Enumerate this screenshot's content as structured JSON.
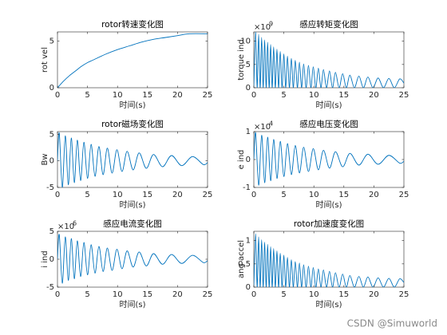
{
  "chart_data": [
    {
      "type": "line",
      "title": "rotor转速变化图",
      "xlabel": "时间(s)",
      "ylabel": "rot vel",
      "color": "#0072bd",
      "x": [
        0,
        1,
        2,
        3,
        4,
        5,
        6,
        8,
        10,
        12,
        14,
        16,
        18,
        20,
        22,
        25
      ],
      "values": [
        0,
        0.7,
        1.3,
        1.8,
        2.3,
        2.7,
        3.0,
        3.6,
        4.1,
        4.5,
        4.9,
        5.2,
        5.4,
        5.6,
        5.8,
        5.8
      ],
      "xlim": [
        0,
        25
      ],
      "xticks": [
        0,
        5,
        10,
        15,
        20,
        25
      ],
      "ylim": [
        0,
        6
      ],
      "yticks": [
        0,
        5
      ]
    },
    {
      "type": "line",
      "title": "感应转矩变化图",
      "xlabel": "时间(s)",
      "ylabel": "torque ind",
      "color": "#0072bd",
      "y_exponent": {
        "base": "×10",
        "power": "9"
      },
      "x": [
        0,
        0.3,
        0.55,
        0.8,
        1.05,
        1.3,
        1.55,
        1.8,
        2.05,
        2.3,
        2.55,
        2.8,
        3.05,
        3.3,
        3.57,
        3.85,
        4.12,
        4.4,
        4.7,
        5.0,
        5.3,
        5.6,
        5.92,
        6.25,
        6.57,
        6.9,
        7.25,
        7.6,
        7.95,
        8.3,
        8.7,
        9.1,
        9.5,
        9.9,
        10.32,
        10.75,
        11.17,
        11.6,
        12.1,
        12.6,
        13.1,
        13.6,
        14.2,
        14.8,
        15.4,
        16,
        16.75,
        17.5,
        18.25,
        19,
        19.85,
        20.7,
        21.6,
        22.5,
        23.4,
        24.3,
        25
      ],
      "values": [
        0,
        12.2,
        0,
        11.5,
        0,
        10.8,
        0,
        10.3,
        0,
        9.8,
        0,
        9.3,
        0,
        8.8,
        0,
        8.3,
        0,
        7.8,
        0,
        7.3,
        0,
        6.8,
        0,
        6.3,
        0,
        5.9,
        0,
        5.5,
        0,
        5.1,
        0,
        4.8,
        0,
        4.5,
        0,
        4.2,
        0,
        3.9,
        0,
        3.6,
        0,
        3.3,
        0,
        3.0,
        0,
        2.7,
        0,
        2.5,
        0,
        2.3,
        0,
        2.1,
        0,
        2.0,
        0,
        1.9,
        1.0
      ],
      "xlim": [
        0,
        25
      ],
      "xticks": [
        0,
        5,
        10,
        15,
        20,
        25
      ],
      "ylim": [
        0,
        12
      ],
      "yticks": [
        0,
        5,
        10
      ]
    },
    {
      "type": "line",
      "title": "rotor磁场变化图",
      "xlabel": "时间(s)",
      "ylabel": "Bw",
      "color": "#0072bd",
      "x": [
        0,
        0.3,
        0.8,
        1.3,
        1.8,
        2.3,
        2.8,
        3.3,
        3.85,
        4.4,
        5.0,
        5.6,
        6.25,
        6.9,
        7.6,
        8.3,
        9.1,
        9.9,
        10.75,
        11.6,
        12.6,
        13.6,
        14.8,
        16,
        17.5,
        19,
        20.7,
        22.5,
        24.3,
        25
      ],
      "values": [
        0,
        5.2,
        -5,
        4.7,
        -4.5,
        4.3,
        -4.1,
        3.9,
        -3.7,
        3.5,
        -3.3,
        3.1,
        -2.9,
        2.7,
        -2.6,
        2.4,
        -2.3,
        2.1,
        -2.0,
        1.8,
        -1.7,
        1.5,
        -1.4,
        1.2,
        -1.1,
        1.0,
        -0.9,
        0.8,
        -0.7,
        -0.3
      ],
      "xlim": [
        0,
        25
      ],
      "xticks": [
        0,
        5,
        10,
        15,
        20,
        25
      ],
      "ylim": [
        -5,
        5.5
      ],
      "yticks": [
        -5,
        0,
        5
      ]
    },
    {
      "type": "line",
      "title": "感应电压变化图",
      "xlabel": "时间(s)",
      "ylabel": "e ind",
      "color": "#0072bd",
      "y_exponent": {
        "base": "×10",
        "power": "4"
      },
      "x": [
        0,
        0.3,
        0.8,
        1.3,
        1.8,
        2.3,
        2.8,
        3.3,
        3.85,
        4.4,
        5.0,
        5.6,
        6.25,
        6.9,
        7.6,
        8.3,
        9.1,
        9.9,
        10.75,
        11.6,
        12.6,
        13.6,
        14.8,
        16,
        17.5,
        19,
        20.7,
        22.5,
        24.3,
        25
      ],
      "values": [
        0,
        0.95,
        -0.92,
        0.87,
        -0.83,
        0.8,
        -0.76,
        0.72,
        -0.68,
        0.65,
        -0.61,
        0.57,
        -0.54,
        0.5,
        -0.48,
        0.44,
        -0.43,
        0.39,
        -0.37,
        0.33,
        -0.31,
        0.28,
        -0.26,
        0.22,
        -0.2,
        0.19,
        -0.17,
        0.15,
        -0.13,
        -0.06
      ],
      "xlim": [
        0,
        25
      ],
      "xticks": [
        0,
        5,
        10,
        15,
        20,
        25
      ],
      "ylim": [
        -1,
        1
      ],
      "yticks": [
        -1,
        0,
        1
      ]
    },
    {
      "type": "line",
      "title": "感应电流变化图",
      "xlabel": "时间(s)",
      "ylabel": "i ind",
      "color": "#0072bd",
      "y_exponent": {
        "base": "×10",
        "power": "6"
      },
      "x": [
        0,
        0.3,
        0.8,
        1.3,
        1.8,
        2.3,
        2.8,
        3.3,
        3.85,
        4.4,
        5.0,
        5.6,
        6.25,
        6.9,
        7.6,
        8.3,
        9.1,
        9.9,
        10.75,
        11.6,
        12.6,
        13.6,
        14.8,
        16,
        17.5,
        19,
        20.7,
        22.5,
        24.3,
        25
      ],
      "values": [
        0,
        4.4,
        -4.3,
        4.0,
        -3.8,
        3.7,
        -3.5,
        3.3,
        -3.1,
        3.0,
        -2.8,
        2.6,
        -2.5,
        2.3,
        -2.2,
        2.0,
        -2.0,
        1.8,
        -1.7,
        1.5,
        -1.4,
        1.3,
        -1.2,
        1.0,
        -0.9,
        0.85,
        -0.75,
        0.7,
        -0.6,
        -0.25
      ],
      "xlim": [
        0,
        25
      ],
      "xticks": [
        0,
        5,
        10,
        15,
        20,
        25
      ],
      "ylim": [
        -5,
        5
      ],
      "yticks": [
        -5,
        0,
        5
      ]
    },
    {
      "type": "line",
      "title": "rotor加速度变化图",
      "xlabel": "时间(s)",
      "ylabel": "ang accel",
      "color": "#0072bd",
      "x": [
        0,
        0.3,
        0.55,
        0.8,
        1.05,
        1.3,
        1.55,
        1.8,
        2.05,
        2.3,
        2.55,
        2.8,
        3.05,
        3.3,
        3.57,
        3.85,
        4.12,
        4.4,
        4.7,
        5.0,
        5.3,
        5.6,
        5.92,
        6.25,
        6.57,
        6.9,
        7.25,
        7.6,
        7.95,
        8.3,
        8.7,
        9.1,
        9.5,
        9.9,
        10.32,
        10.75,
        11.17,
        11.6,
        12.1,
        12.6,
        13.1,
        13.6,
        14.2,
        14.8,
        15.4,
        16,
        16.75,
        17.5,
        18.25,
        19,
        19.85,
        20.7,
        21.6,
        22.5,
        23.4,
        24.3,
        25
      ],
      "values": [
        0,
        1.15,
        0,
        1.08,
        0,
        1.02,
        0,
        0.97,
        0,
        0.92,
        0,
        0.87,
        0,
        0.83,
        0,
        0.78,
        0,
        0.73,
        0,
        0.69,
        0,
        0.64,
        0,
        0.59,
        0,
        0.55,
        0,
        0.52,
        0,
        0.48,
        0,
        0.45,
        0,
        0.42,
        0,
        0.39,
        0,
        0.37,
        0,
        0.34,
        0,
        0.31,
        0,
        0.28,
        0,
        0.25,
        0,
        0.23,
        0,
        0.22,
        0,
        0.2,
        0,
        0.19,
        0,
        0.18,
        0.1
      ],
      "xlim": [
        0,
        25
      ],
      "xticks": [
        0,
        5,
        10,
        15,
        20,
        25
      ],
      "ylim": [
        0,
        1.2
      ],
      "yticks": [
        0,
        0.5,
        1
      ]
    }
  ],
  "watermark": "CSDN @Simuworld"
}
